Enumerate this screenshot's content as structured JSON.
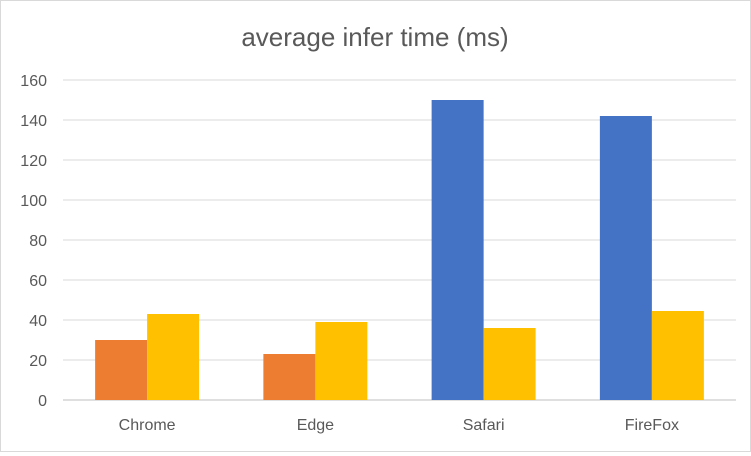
{
  "chart_data": {
    "type": "bar",
    "title": "average infer time (ms)",
    "xlabel": "",
    "ylabel": "",
    "categories": [
      "Chrome",
      "Edge",
      "Safari",
      "FireFox"
    ],
    "ylim": [
      0,
      160
    ],
    "yticks": [
      0,
      20,
      40,
      60,
      80,
      100,
      120,
      140,
      160
    ],
    "grid": true,
    "legend": "none",
    "series": [
      {
        "color": "#4472c4",
        "values": [
          null,
          null,
          150,
          142
        ]
      },
      {
        "color": "#ed7d31",
        "values": [
          30,
          23,
          null,
          null
        ]
      },
      {
        "color": "#ffc000",
        "values": [
          43,
          39,
          36,
          44.5
        ]
      }
    ]
  }
}
